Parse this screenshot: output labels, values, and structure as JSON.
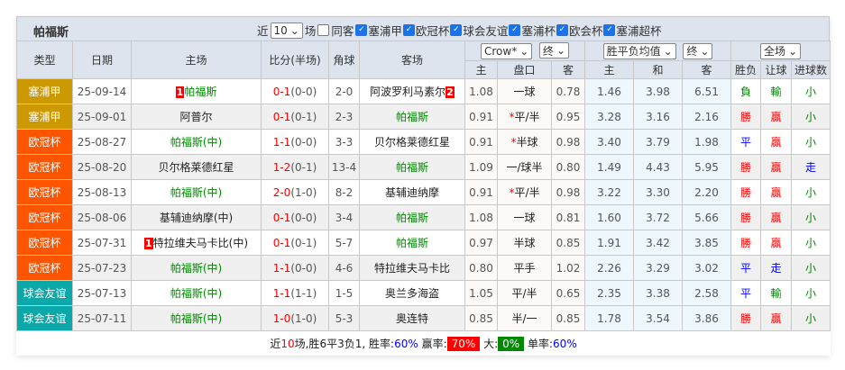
{
  "title": "帕福斯",
  "filters": {
    "recent_label": "近",
    "count": "10",
    "games_label": "场",
    "same_host_label": "同客",
    "competitions": [
      "塞浦甲",
      "欧冠杯",
      "球会友谊",
      "塞浦杯",
      "欧会杯",
      "塞浦超杯"
    ]
  },
  "headers": {
    "type": "类型",
    "date": "日期",
    "home": "主场",
    "score": "比分(半场)",
    "corner": "角球",
    "away": "客场",
    "odds_company": "Crow*",
    "odds_stage": "终",
    "euro_type": "胜平负均值",
    "euro_stage": "终",
    "scope": "全场",
    "sub": [
      "主",
      "盘口",
      "客",
      "主",
      "和",
      "客",
      "胜负",
      "让球",
      "进球数"
    ]
  },
  "colors": {
    "塞浦甲": "#cc9900",
    "欧冠杯": "#ff5500",
    "球会友谊": "#0aa8a8"
  },
  "rows": [
    {
      "type": "塞浦甲",
      "date": "25-09-14",
      "home_rank": "1",
      "home": "帕福斯",
      "home_hl": true,
      "score": "0-1",
      "half": "(0-0)",
      "corner": "2-0",
      "away": "阿波罗利马素尔",
      "away_rank": "2",
      "away_hl": false,
      "h": "1.08",
      "line": "一球",
      "a": "0.78",
      "star": false,
      "e1": "1.46",
      "e2": "3.98",
      "e3": "6.51",
      "r1": "負",
      "r2": "輸",
      "r3": "小"
    },
    {
      "type": "塞浦甲",
      "date": "25-09-01",
      "home": "阿普尔",
      "home_hl": false,
      "score": "0-1",
      "half": "(0-1)",
      "corner": "2-3",
      "away": "帕福斯",
      "away_hl": true,
      "h": "0.91",
      "line": "平/半",
      "a": "0.95",
      "star": true,
      "e1": "3.28",
      "e2": "3.16",
      "e3": "2.16",
      "r1": "勝",
      "r2": "贏",
      "r3": "小"
    },
    {
      "type": "欧冠杯",
      "date": "25-08-27",
      "home": "帕福斯(中)",
      "home_hl": true,
      "score": "1-1",
      "half": "(0-0)",
      "corner": "3-3",
      "away": "贝尔格莱德红星",
      "away_hl": false,
      "h": "0.91",
      "line": "半球",
      "a": "0.98",
      "star": true,
      "e1": "3.40",
      "e2": "3.79",
      "e3": "1.98",
      "r1": "平",
      "r2": "贏",
      "r3": "小"
    },
    {
      "type": "欧冠杯",
      "date": "25-08-20",
      "home": "贝尔格莱德红星",
      "home_hl": false,
      "score": "1-2",
      "half": "(0-1)",
      "corner": "13-4",
      "away": "帕福斯",
      "away_hl": true,
      "h": "1.09",
      "line": "一/球半",
      "a": "0.80",
      "star": false,
      "e1": "1.49",
      "e2": "4.43",
      "e3": "5.95",
      "r1": "勝",
      "r2": "贏",
      "r3": "走"
    },
    {
      "type": "欧冠杯",
      "date": "25-08-13",
      "home": "帕福斯(中)",
      "home_hl": true,
      "score": "2-0",
      "half": "(1-0)",
      "corner": "8-2",
      "away": "基辅迪纳摩",
      "away_hl": false,
      "h": "0.91",
      "line": "平/半",
      "a": "0.98",
      "star": true,
      "e1": "3.22",
      "e2": "3.30",
      "e3": "2.20",
      "r1": "勝",
      "r2": "贏",
      "r3": "小"
    },
    {
      "type": "欧冠杯",
      "date": "25-08-06",
      "home": "基辅迪纳摩(中)",
      "home_hl": false,
      "score": "0-1",
      "half": "(0-0)",
      "corner": "3-4",
      "away": "帕福斯",
      "away_hl": true,
      "h": "1.08",
      "line": "一球",
      "a": "0.81",
      "star": false,
      "e1": "1.60",
      "e2": "3.72",
      "e3": "5.66",
      "r1": "勝",
      "r2": "贏",
      "r3": "小"
    },
    {
      "type": "欧冠杯",
      "date": "25-07-31",
      "home_rank": "1",
      "home": "特拉维夫马卡比(中)",
      "home_hl": false,
      "score": "0-1",
      "half": "(0-1)",
      "corner": "5-7",
      "away": "帕福斯",
      "away_hl": true,
      "h": "0.97",
      "line": "半球",
      "a": "0.85",
      "star": false,
      "e1": "1.91",
      "e2": "3.42",
      "e3": "3.85",
      "r1": "勝",
      "r2": "贏",
      "r3": "小"
    },
    {
      "type": "欧冠杯",
      "date": "25-07-23",
      "home": "帕福斯(中)",
      "home_hl": true,
      "score": "1-1",
      "half": "(0-0)",
      "corner": "4-6",
      "away": "特拉维夫马卡比",
      "away_hl": false,
      "h": "0.80",
      "line": "平手",
      "a": "1.02",
      "star": false,
      "e1": "2.26",
      "e2": "3.29",
      "e3": "3.02",
      "r1": "平",
      "r2": "走",
      "r3": "小"
    },
    {
      "type": "球会友谊",
      "date": "25-07-13",
      "home": "帕福斯(中)",
      "home_hl": true,
      "score": "1-1",
      "half": "(1-1)",
      "corner": "1-5",
      "away": "奥兰多海盗",
      "away_hl": false,
      "h": "1.05",
      "line": "平/半",
      "a": "0.65",
      "star": false,
      "e1": "2.35",
      "e2": "3.38",
      "e3": "2.58",
      "r1": "平",
      "r2": "輸",
      "r3": "小"
    },
    {
      "type": "球会友谊",
      "date": "25-07-11",
      "home": "帕福斯(中)",
      "home_hl": true,
      "score": "1-0",
      "half": "(1-0)",
      "corner": "5-3",
      "away": "奥连特",
      "away_hl": false,
      "h": "0.85",
      "line": "半/一",
      "a": "0.85",
      "star": false,
      "e1": "1.78",
      "e2": "3.54",
      "e3": "3.86",
      "r1": "勝",
      "r2": "贏",
      "r3": "小"
    }
  ],
  "summary": {
    "p1": "近",
    "n": "10",
    "p2": "场,胜",
    "w": "6",
    "p3": "平",
    "d": "3",
    "p4": "负",
    "l": "1",
    "p5": ", 胜率:",
    "win_rate": "60%",
    "p6": " 赢率:",
    "cover_rate": "70%",
    "p7": " 大:",
    "over_rate": "0%",
    "p8": " 单率:",
    "odd_rate": "60%"
  }
}
